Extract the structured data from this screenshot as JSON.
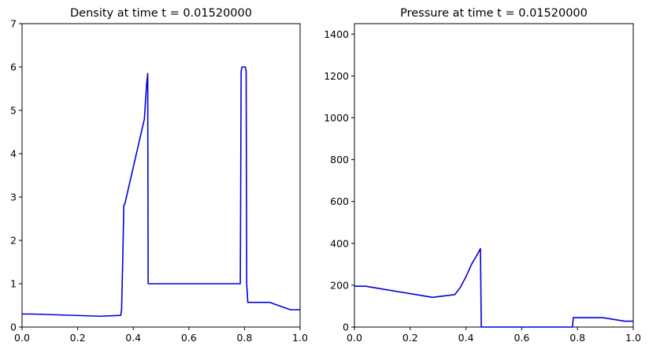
{
  "chart_data": [
    {
      "type": "line",
      "title": "Density at time t =     0.01520000",
      "xlabel": "",
      "ylabel": "",
      "xlim": [
        0,
        1
      ],
      "ylim": [
        0,
        7
      ],
      "xticks": [
        0.0,
        0.2,
        0.4,
        0.6,
        0.8,
        1.0
      ],
      "xtick_labels": [
        "0.0",
        "0.2",
        "0.4",
        "0.6",
        "0.8",
        "1.0"
      ],
      "yticks": [
        0,
        1,
        2,
        3,
        4,
        5,
        6,
        7
      ],
      "ytick_labels": [
        "0",
        "1",
        "2",
        "3",
        "4",
        "5",
        "6",
        "7"
      ],
      "grid": false,
      "line_color": "#0000dd",
      "series": [
        {
          "x": [
            0.0,
            0.04,
            0.28,
            0.355,
            0.358,
            0.362,
            0.366,
            0.37,
            0.44,
            0.448,
            0.452,
            0.4535,
            0.46,
            0.785,
            0.788,
            0.791,
            0.803,
            0.806,
            0.808,
            0.812,
            0.89,
            0.965,
            1.0
          ],
          "y": [
            0.3,
            0.3,
            0.25,
            0.27,
            0.4,
            1.5,
            2.8,
            2.85,
            4.8,
            5.6,
            5.85,
            1.0,
            1.0,
            1.0,
            5.9,
            6.0,
            6.0,
            5.9,
            1.0,
            0.57,
            0.57,
            0.4,
            0.4
          ]
        }
      ]
    },
    {
      "type": "line",
      "title": "Pressure at time t =     0.01520000",
      "xlabel": "",
      "ylabel": "",
      "xlim": [
        0,
        1
      ],
      "ylim": [
        0,
        1450
      ],
      "xticks": [
        0.0,
        0.2,
        0.4,
        0.6,
        0.8,
        1.0
      ],
      "xtick_labels": [
        "0.0",
        "0.2",
        "0.4",
        "0.6",
        "0.8",
        "1.0"
      ],
      "yticks": [
        0,
        200,
        400,
        600,
        800,
        1000,
        1200,
        1400
      ],
      "ytick_labels": [
        "0",
        "200",
        "400",
        "600",
        "800",
        "1000",
        "1200",
        "1400"
      ],
      "grid": false,
      "line_color": "#0000dd",
      "series": [
        {
          "x": [
            0.0,
            0.04,
            0.28,
            0.36,
            0.38,
            0.4,
            0.42,
            0.44,
            0.452,
            0.455,
            0.46,
            0.782,
            0.785,
            0.8,
            0.89,
            0.97,
            1.0
          ],
          "y": [
            195,
            195,
            142,
            155,
            190,
            240,
            300,
            345,
            375,
            0,
            0,
            0,
            45,
            45,
            45,
            28,
            28
          ]
        }
      ]
    }
  ]
}
